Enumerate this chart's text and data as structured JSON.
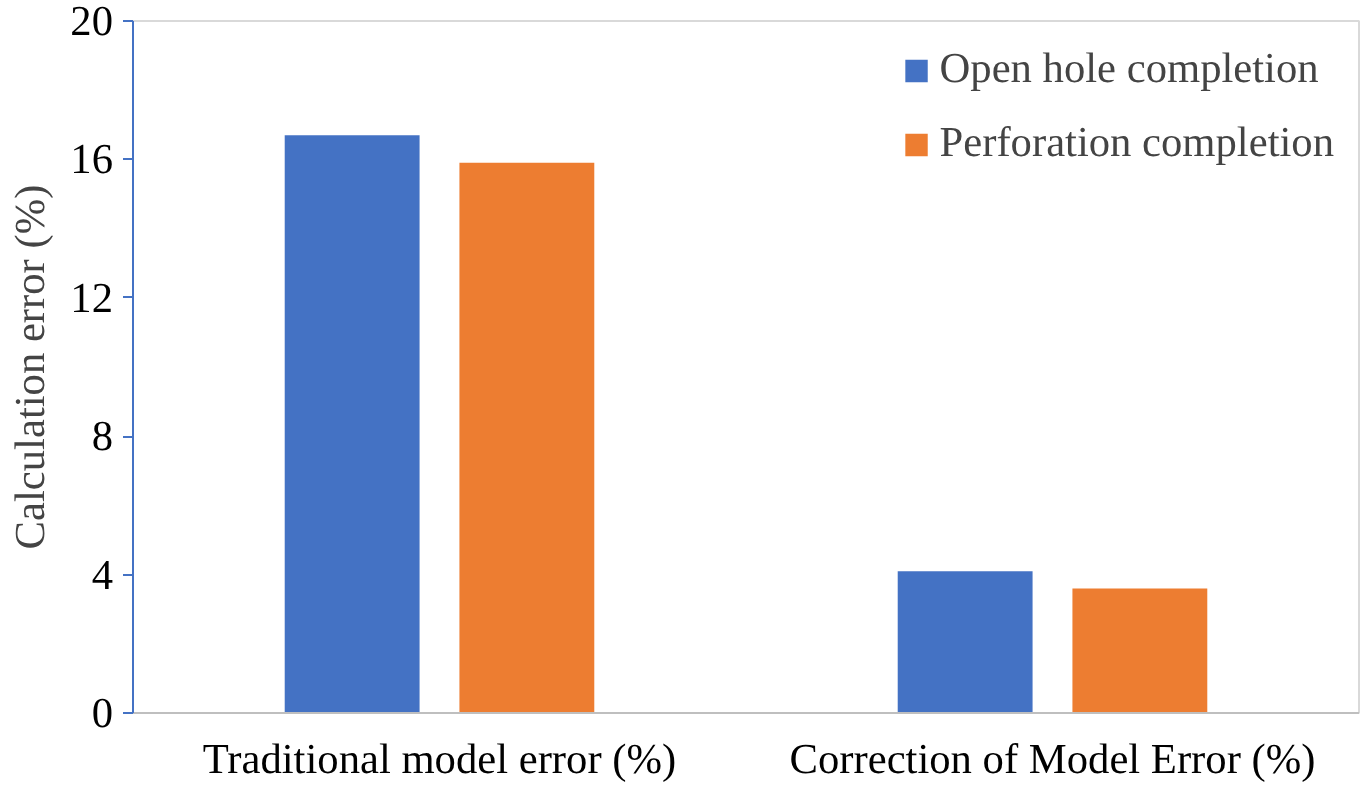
{
  "chart_data": {
    "type": "bar",
    "ylabel": "Calculation error (%)",
    "categories": [
      "Traditional model error (%)",
      "Correction of Model Error (%)"
    ],
    "series": [
      {
        "name": "Open hole completion",
        "color": "#4472c4",
        "values": [
          16.7,
          4.1
        ]
      },
      {
        "name": "Perforation completion",
        "color": "#ed7d31",
        "values": [
          15.9,
          3.6
        ]
      }
    ],
    "ylim": [
      0,
      20
    ],
    "yticks": [
      0,
      4,
      8,
      12,
      16,
      20
    ],
    "grid": false,
    "legend": "top right"
  }
}
